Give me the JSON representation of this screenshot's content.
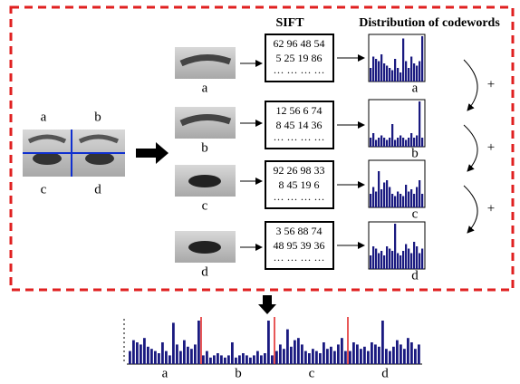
{
  "labels": [
    "a",
    "b",
    "c",
    "d"
  ],
  "plus": "+",
  "sift": {
    "title": "SIFT",
    "rows": [
      [
        "62 96 48 54",
        "5 25 19 86",
        "··· ··· ··· ···"
      ],
      [
        "12 56  6 74",
        "8 45 14 36",
        "··· ··· ··· ···"
      ],
      [
        "92 26 98 33",
        "8 45 19  6",
        "··· ··· ··· ···"
      ],
      [
        "3 56 88 74",
        "48 95 39 36",
        "··· ··· ··· ···"
      ]
    ]
  },
  "distribution": {
    "title": "Distribution of codewords",
    "histograms": [
      [
        0.3,
        0.55,
        0.5,
        0.45,
        0.6,
        0.4,
        0.35,
        0.3,
        0.25,
        0.5,
        0.3,
        0.2,
        0.95,
        0.45,
        0.3,
        0.55,
        0.4,
        0.35,
        0.45,
        1
      ],
      [
        0.2,
        0.3,
        0.15,
        0.2,
        0.25,
        0.2,
        0.15,
        0.2,
        0.5,
        0.15,
        0.2,
        0.25,
        0.2,
        0.15,
        0.2,
        0.3,
        0.2,
        0.25,
        1,
        0.2
      ],
      [
        0.3,
        0.45,
        0.35,
        0.8,
        0.4,
        0.55,
        0.6,
        0.45,
        0.3,
        0.25,
        0.35,
        0.3,
        0.25,
        0.5,
        0.35,
        0.4,
        0.3,
        0.45,
        0.6,
        0.3
      ],
      [
        0.3,
        0.5,
        0.45,
        0.35,
        0.4,
        0.3,
        0.5,
        0.45,
        0.4,
        1,
        0.35,
        0.3,
        0.4,
        0.55,
        0.45,
        0.35,
        0.6,
        0.5,
        0.35,
        0.45
      ]
    ]
  }
}
